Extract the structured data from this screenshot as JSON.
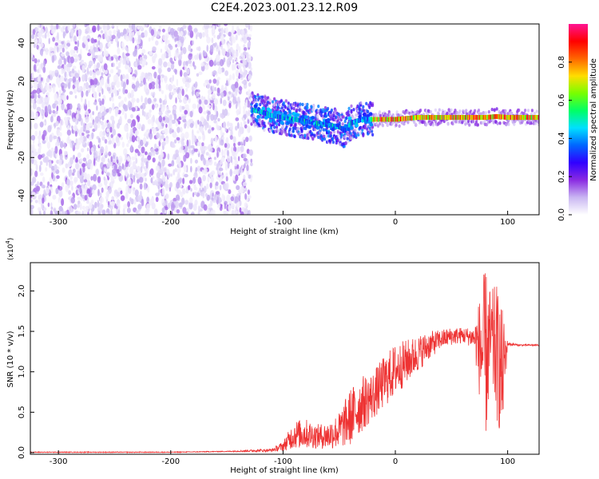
{
  "title": "C2E4.2023.001.23.12.R09",
  "chart_data": [
    {
      "type": "heatmap",
      "xlabel": "Height of straight line (km)",
      "ylabel": "Frequency (Hz)",
      "xlim": [
        -325,
        128
      ],
      "ylim": [
        -50,
        50
      ],
      "x_ticks": [
        -300,
        -200,
        -100,
        0,
        100
      ],
      "y_ticks": [
        -40,
        -20,
        0,
        20,
        40
      ],
      "colorbar": {
        "label": "Normalized spectral amplitude",
        "range": [
          0,
          1
        ],
        "ticks": [
          "0.0",
          "0.2",
          "0.4",
          "0.6",
          "0.8"
        ],
        "colors": [
          "#ffffff",
          "#c9b6f2",
          "#8a2be2",
          "#3000ff",
          "#0066ff",
          "#00e0ff",
          "#00ff66",
          "#77ff00",
          "#ffdd00",
          "#ff6600",
          "#ff0000",
          "#ff1493"
        ]
      },
      "regions": [
        {
          "name": "noise",
          "x_range": [
            -325,
            -128
          ],
          "freq_range": [
            -50,
            50
          ],
          "amplitude_range": [
            0.02,
            0.15
          ]
        },
        {
          "name": "signal",
          "x_range": [
            -128,
            128
          ],
          "amplitude_range": [
            0.1,
            1.0
          ]
        }
      ],
      "signal_center_freq": {
        "x": [
          -128,
          -120,
          -110,
          -100,
          -90,
          -80,
          -70,
          -60,
          -50,
          -45,
          -40,
          -30,
          -20,
          -10,
          0,
          10,
          20,
          40,
          60,
          80,
          90,
          100,
          128
        ],
        "freq": [
          5,
          4,
          2,
          1,
          0,
          -1,
          -2,
          -3,
          -4,
          -6,
          -2,
          0,
          0,
          0,
          0,
          0.5,
          1,
          1,
          1,
          1,
          1.5,
          1,
          1
        ]
      }
    },
    {
      "type": "line",
      "xlabel": "Height of straight line (km)",
      "ylabel": "SNR (10 * v/v)",
      "y_multiplier": "(x10^4)",
      "xlim": [
        -325,
        128
      ],
      "ylim": [
        -0.02,
        2.35
      ],
      "x_ticks": [
        -300,
        -200,
        -100,
        0,
        100
      ],
      "y_ticks": [
        "0.0",
        "0.5",
        "1.0",
        "1.5",
        "2.0"
      ],
      "series_color": "#ee3333",
      "series": [
        {
          "x": [
            -325,
            -250,
            -200,
            -150,
            -110,
            -100,
            -90,
            -80,
            -70,
            -60,
            -50,
            -40,
            -30,
            -20,
            -10,
            0,
            10,
            20,
            30,
            40,
            50,
            60,
            70,
            80,
            85,
            90,
            95,
            100,
            110,
            128
          ],
          "envelope_low": [
            0,
            0,
            0,
            0.01,
            0.01,
            0.02,
            0.05,
            0.05,
            0.05,
            0.04,
            0.05,
            0.08,
            0.25,
            0.4,
            0.55,
            0.7,
            0.85,
            1.0,
            1.15,
            1.28,
            1.33,
            1.35,
            1.3,
            0.05,
            0.8,
            0.4,
            0.1,
            1.32,
            1.32,
            1.32
          ],
          "envelope_high": [
            0.01,
            0.01,
            0.01,
            0.02,
            0.05,
            0.14,
            0.4,
            0.42,
            0.35,
            0.38,
            0.5,
            0.8,
            0.95,
            1.0,
            1.2,
            1.35,
            1.4,
            1.45,
            1.5,
            1.52,
            1.55,
            1.55,
            1.55,
            2.3,
            2.0,
            2.1,
            1.8,
            1.37,
            1.34,
            1.34
          ]
        }
      ]
    }
  ]
}
